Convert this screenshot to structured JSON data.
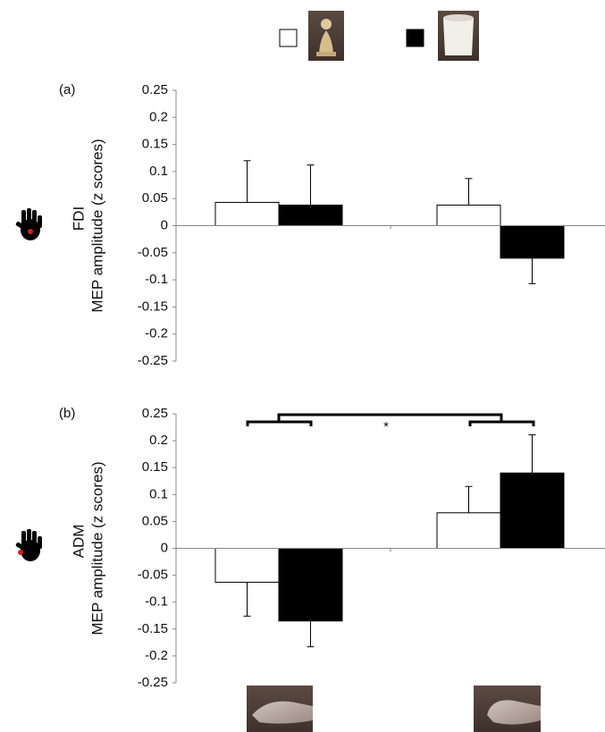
{
  "chart_data": [
    {
      "type": "bar",
      "panel_label": "(a)",
      "muscle": "FDI",
      "ylabel": "MEP amplitude (z scores)",
      "categories": [
        null,
        null
      ],
      "series": [
        {
          "color": "#ffffff",
          "values": [
            0.043,
            0.038
          ],
          "errors": [
            0.077,
            0.049
          ]
        },
        {
          "color": "#000000",
          "values": [
            0.038,
            -0.06
          ],
          "errors": [
            0.074,
            0.047
          ]
        }
      ],
      "ylim": [
        -0.25,
        0.25
      ],
      "yticks": [
        0.25,
        0.2,
        0.15,
        0.1,
        0.05,
        0,
        -0.05,
        -0.1,
        -0.15,
        -0.2,
        -0.25
      ]
    },
    {
      "type": "bar",
      "panel_label": "(b)",
      "muscle": "ADM",
      "ylabel": "MEP amplitude (z scores)",
      "annotation": "*",
      "categories": [
        null,
        null
      ],
      "series": [
        {
          "color": "#ffffff",
          "values": [
            -0.063,
            0.066
          ],
          "errors": [
            0.063,
            0.049
          ]
        },
        {
          "color": "#000000",
          "values": [
            -0.135,
            0.14
          ],
          "errors": [
            0.048,
            0.071
          ]
        }
      ],
      "ylim": [
        -0.25,
        0.25
      ],
      "yticks": [
        0.25,
        0.2,
        0.15,
        0.1,
        0.05,
        0,
        -0.05,
        -0.1,
        -0.15,
        -0.2,
        -0.25
      ]
    }
  ]
}
